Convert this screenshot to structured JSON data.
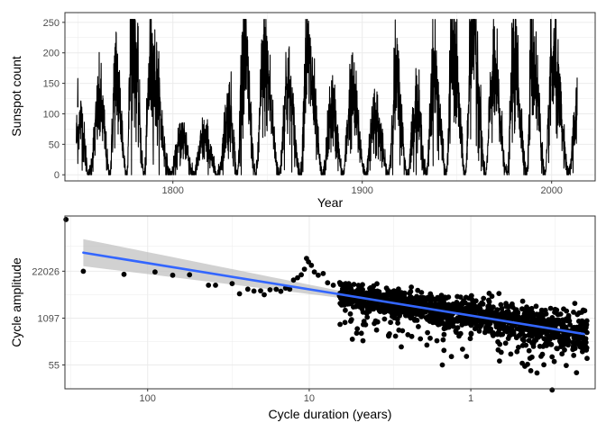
{
  "chart_data": [
    {
      "type": "line",
      "title": "",
      "xlabel": "Year",
      "ylabel": "Sunspot count",
      "xlim": [
        1743,
        2023
      ],
      "ylim": [
        -10,
        266
      ],
      "x_ticks": [
        1800,
        1900,
        2000
      ],
      "x_tick_labels": [
        "1800",
        "1900",
        "2000"
      ],
      "y_ticks": [
        0,
        50,
        100,
        150,
        200,
        250
      ],
      "y_tick_labels": [
        "0",
        "50",
        "100",
        "150",
        "200",
        "250"
      ],
      "grid": true,
      "legend": "none",
      "series_color": "#000000",
      "cycle_minima_years": [
        1755.2,
        1766.5,
        1775.5,
        1784.7,
        1798.3,
        1810.6,
        1823.3,
        1833.9,
        1843.5,
        1856.0,
        1867.2,
        1878.9,
        1889.6,
        1901.7,
        1913.6,
        1923.6,
        1933.8,
        1944.2,
        1954.3,
        1964.9,
        1976.5,
        1986.8,
        1996.4,
        2008.9
      ],
      "cycle_peaks": [
        {
          "year": 1749.8,
          "value": 158
        },
        {
          "year": 1761.5,
          "value": 112
        },
        {
          "year": 1769.7,
          "value": 160
        },
        {
          "year": 1778.4,
          "value": 238
        },
        {
          "year": 1788.1,
          "value": 175
        },
        {
          "year": 1805.2,
          "value": 62
        },
        {
          "year": 1816.4,
          "value": 58
        },
        {
          "year": 1829.9,
          "value": 103
        },
        {
          "year": 1837.2,
          "value": 205
        },
        {
          "year": 1848.1,
          "value": 180
        },
        {
          "year": 1860.1,
          "value": 141
        },
        {
          "year": 1870.6,
          "value": 188
        },
        {
          "year": 1883.9,
          "value": 105
        },
        {
          "year": 1894.1,
          "value": 127
        },
        {
          "year": 1906.2,
          "value": 95
        },
        {
          "year": 1917.6,
          "value": 150
        },
        {
          "year": 1928.4,
          "value": 110
        },
        {
          "year": 1937.4,
          "value": 165
        },
        {
          "year": 1947.5,
          "value": 200
        },
        {
          "year": 1957.9,
          "value": 253
        },
        {
          "year": 1968.9,
          "value": 160
        },
        {
          "year": 1979.9,
          "value": 190
        },
        {
          "year": 1989.6,
          "value": 200
        },
        {
          "year": 2000.3,
          "value": 175
        },
        {
          "year": 2013.0,
          "value": 95
        }
      ]
    },
    {
      "type": "scatter",
      "title": "",
      "xlabel": "Cycle duration (years)",
      "ylabel": "Cycle amplitude",
      "x_scale": "reciprocal",
      "y_scale": "log",
      "x_ticks": [
        100,
        10,
        1
      ],
      "x_tick_labels": [
        "100",
        "10",
        "1"
      ],
      "y_ticks": [
        55,
        1097,
        22026
      ],
      "y_tick_labels": [
        "55",
        "1097",
        "22026"
      ],
      "xlim": [
        325,
        0.17
      ],
      "ylim": [
        12,
        750000
      ],
      "grid": true,
      "legend": "none",
      "point_color": "#000000",
      "fit": {
        "method": "linear",
        "color": "#3366ff",
        "band_color": "#bdbdbd",
        "x": [
          250,
          0.2
        ],
        "y": [
          72000,
          400
        ],
        "band_halfwidth_log": [
          0.75,
          0.1,
          0.22
        ]
      },
      "points": [
        {
          "x": 320,
          "y": 600000
        },
        {
          "x": 250,
          "y": 22000
        },
        {
          "x": 140,
          "y": 18000
        },
        {
          "x": 90,
          "y": 21000
        },
        {
          "x": 70,
          "y": 17000
        },
        {
          "x": 55,
          "y": 17500
        },
        {
          "x": 42,
          "y": 9000
        },
        {
          "x": 38,
          "y": 9000
        },
        {
          "x": 30,
          "y": 10000
        },
        {
          "x": 27,
          "y": 5200
        },
        {
          "x": 24,
          "y": 7000
        },
        {
          "x": 22,
          "y": 6200
        },
        {
          "x": 20,
          "y": 6300
        },
        {
          "x": 19,
          "y": 4900
        },
        {
          "x": 17.5,
          "y": 6700
        },
        {
          "x": 16,
          "y": 6900
        },
        {
          "x": 15,
          "y": 6100
        },
        {
          "x": 14,
          "y": 7500
        },
        {
          "x": 13.2,
          "y": 7000
        },
        {
          "x": 12.5,
          "y": 12500
        },
        {
          "x": 11.8,
          "y": 14500
        },
        {
          "x": 11.2,
          "y": 17500
        },
        {
          "x": 10.7,
          "y": 25000
        },
        {
          "x": 10.4,
          "y": 50000
        },
        {
          "x": 10.1,
          "y": 40000
        },
        {
          "x": 9.7,
          "y": 32000
        },
        {
          "x": 9.3,
          "y": 21000
        },
        {
          "x": 8.8,
          "y": 17000
        },
        {
          "x": 8.2,
          "y": 19000
        },
        {
          "x": 7.7,
          "y": 10500
        },
        {
          "x": 7.1,
          "y": 9000
        },
        {
          "x": 6.5,
          "y": 4600
        },
        {
          "x": 6.0,
          "y": 3700
        }
      ]
    }
  ]
}
